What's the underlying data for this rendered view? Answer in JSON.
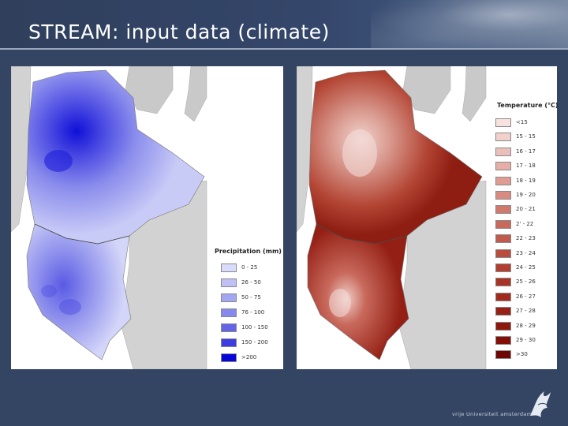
{
  "title": "STREAM: input data (climate)",
  "footer": {
    "university": "vrije Universiteit   amsterdam"
  },
  "precip_legend": {
    "title": "Precipitation (mm)",
    "classes": [
      {
        "label": "0 - 25",
        "color": "#d9dbfa"
      },
      {
        "label": "26 - 50",
        "color": "#bfc1f6"
      },
      {
        "label": "50 - 75",
        "color": "#a3a6f1"
      },
      {
        "label": "76 - 100",
        "color": "#8588ec"
      },
      {
        "label": "100 - 150",
        "color": "#6465e6"
      },
      {
        "label": "150 - 200",
        "color": "#3c3ce0"
      },
      {
        "label": ">200",
        "color": "#0606d6"
      }
    ]
  },
  "temp_legend": {
    "title": "Temperature (°C)",
    "classes": [
      {
        "label": "<15",
        "color": "#f7e2e0"
      },
      {
        "label": "15 - 15",
        "color": "#f2d0cc"
      },
      {
        "label": "16 - 17",
        "color": "#ecc0ba"
      },
      {
        "label": "17 - 18",
        "color": "#e6aea7"
      },
      {
        "label": "18 - 19",
        "color": "#df9c93"
      },
      {
        "label": "19 - 20",
        "color": "#d88b80"
      },
      {
        "label": "20 - 21",
        "color": "#d07a6e"
      },
      {
        "label": "2' - 22",
        "color": "#c8695c"
      },
      {
        "label": "22 - 23",
        "color": "#c05a4c"
      },
      {
        "label": "23 - 24",
        "color": "#b84c3d"
      },
      {
        "label": "24 - 25",
        "color": "#b03f31"
      },
      {
        "label": "25 - 26",
        "color": "#a83427"
      },
      {
        "label": "26 - 27",
        "color": "#a02a1e"
      },
      {
        "label": "27 - 28",
        "color": "#962116"
      },
      {
        "label": "28 - 29",
        "color": "#8c180f"
      },
      {
        "label": "29 - 30",
        "color": "#821009"
      },
      {
        "label": ">30",
        "color": "#6e0604"
      }
    ]
  }
}
